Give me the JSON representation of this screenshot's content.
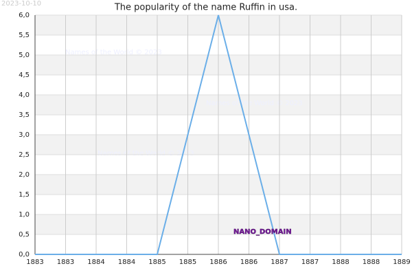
{
  "chart_data": {
    "type": "line",
    "title": "The popularity of the name Ruffin in usa.",
    "date": "2023-10-10",
    "watermark": "Names of the World © 2023",
    "label": "NANO_DOMAIN",
    "x": [
      1883,
      1884,
      1885,
      1886,
      1887,
      1888,
      1889
    ],
    "series": [
      {
        "name": "Ruffin",
        "color": "#6aaee8",
        "values": [
          0,
          0,
          0,
          6,
          0,
          0,
          0
        ]
      }
    ],
    "xlim": [
      1883,
      1889
    ],
    "xticks": [
      {
        "value": 1883,
        "label": "1883"
      },
      {
        "value": 1883.5,
        "label": "1883"
      },
      {
        "value": 1884,
        "label": "1884"
      },
      {
        "value": 1884.5,
        "label": "1884"
      },
      {
        "value": 1885,
        "label": "1885"
      },
      {
        "value": 1885.5,
        "label": "1885"
      },
      {
        "value": 1886,
        "label": "1886"
      },
      {
        "value": 1886.5,
        "label": "1886"
      },
      {
        "value": 1887,
        "label": "1887"
      },
      {
        "value": 1887.5,
        "label": "1887"
      },
      {
        "value": 1888,
        "label": "1888"
      },
      {
        "value": 1888.5,
        "label": "1888"
      },
      {
        "value": 1889,
        "label": "1889"
      }
    ],
    "ylim": [
      0,
      6
    ],
    "yticks": [
      {
        "value": 0,
        "label": "0,0"
      },
      {
        "value": 0.5,
        "label": "0,5"
      },
      {
        "value": 1,
        "label": "1,0"
      },
      {
        "value": 1.5,
        "label": "1,5"
      },
      {
        "value": 2,
        "label": "2,0"
      },
      {
        "value": 2.5,
        "label": "2,5"
      },
      {
        "value": 3,
        "label": "3,0"
      },
      {
        "value": 3.5,
        "label": "3,5"
      },
      {
        "value": 4,
        "label": "4,0"
      },
      {
        "value": 4.5,
        "label": "4,5"
      },
      {
        "value": 5,
        "label": "5,0"
      },
      {
        "value": 5.5,
        "label": "5,5"
      },
      {
        "value": 6,
        "label": "6,0"
      }
    ],
    "grid": true
  }
}
